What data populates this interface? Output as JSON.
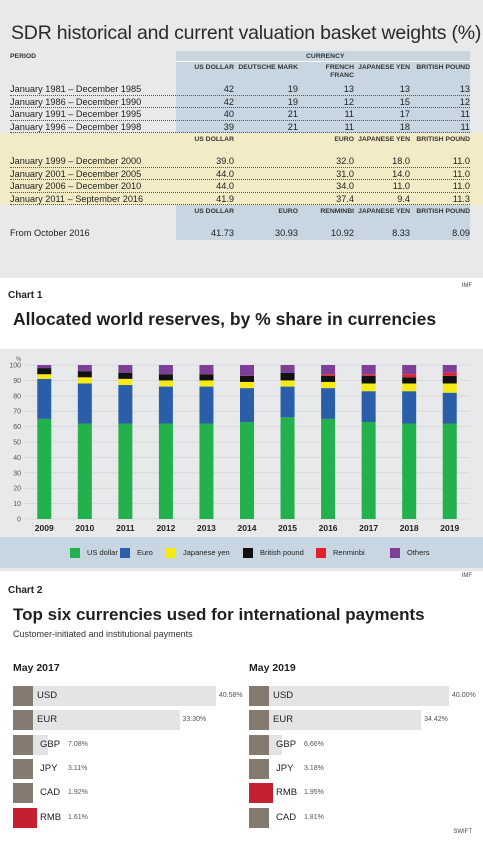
{
  "sdr": {
    "title": "SDR historical and current valuation basket weights (%)",
    "period_header": "PERIOD",
    "currency_header": "CURRENCY",
    "source": "IMF",
    "sections": [
      {
        "theme": "blue",
        "headers": [
          "US DOLLAR",
          "DEUTSCHE MARK",
          "FRENCH FRANC",
          "JAPANESE YEN",
          "BRITISH POUND"
        ],
        "rows": [
          {
            "period": "January 1981 – December 1985",
            "values": [
              "42",
              "19",
              "13",
              "13",
              "13"
            ]
          },
          {
            "period": "January 1986 – December 1990",
            "values": [
              "42",
              "19",
              "12",
              "15",
              "12"
            ]
          },
          {
            "period": "January 1991 – December 1995",
            "values": [
              "40",
              "21",
              "11",
              "17",
              "11"
            ]
          },
          {
            "period": "January 1996 – December 1998",
            "values": [
              "39",
              "21",
              "11",
              "18",
              "11"
            ]
          }
        ]
      },
      {
        "theme": "yellow",
        "headers": [
          "US DOLLAR",
          "",
          "EURO",
          "JAPANESE YEN",
          "BRITISH POUND"
        ],
        "rows": [
          {
            "period": "January 1999 – December 2000",
            "values": [
              "39.0",
              "",
              "32.0",
              "18.0",
              "11.0"
            ]
          },
          {
            "period": "January 2001 – December 2005",
            "values": [
              "44.0",
              "",
              "31.0",
              "14.0",
              "11.0"
            ]
          },
          {
            "period": "January 2006 – December 2010",
            "values": [
              "44.0",
              "",
              "34.0",
              "11.0",
              "11.0"
            ]
          },
          {
            "period": "January 2011 – September 2016",
            "values": [
              "41.9",
              "",
              "37.4",
              "9.4",
              "11.3"
            ]
          }
        ]
      },
      {
        "theme": "blue",
        "headers": [
          "US DOLLAR",
          "EURO",
          "RENMINBI",
          "JAPANESE YEN",
          "BRITISH POUND"
        ],
        "rows": [
          {
            "period": "From October 2016",
            "values": [
              "41.73",
              "30.93",
              "10.92",
              "8.33",
              "8.09"
            ]
          }
        ]
      }
    ]
  },
  "chart1": {
    "label": "Chart 1",
    "title": "Allocated world reserves, by % share in currencies",
    "source": "IMF",
    "chart_data": {
      "type": "bar",
      "stacked": true,
      "categories": [
        "2009",
        "2010",
        "2011",
        "2012",
        "2013",
        "2014",
        "2015",
        "2016",
        "2017",
        "2018",
        "2019"
      ],
      "ylim": [
        0,
        100
      ],
      "yticks": [
        "0",
        "10",
        "20",
        "30",
        "40",
        "50",
        "60",
        "70",
        "80",
        "90",
        "100"
      ],
      "yunit": "%",
      "grid": true,
      "legend": "bottom",
      "series": [
        {
          "name": "US dollar",
          "color": "#22b14c",
          "values": [
            65,
            62,
            62,
            62,
            62,
            63,
            66,
            65,
            63,
            62,
            62
          ]
        },
        {
          "name": "Euro",
          "color": "#2a5ea8",
          "values": [
            26,
            26,
            25,
            24,
            24,
            22,
            20,
            20,
            20,
            21,
            20
          ]
        },
        {
          "name": "Japanese yen",
          "color": "#f5ea14",
          "values": [
            3,
            4,
            4,
            4,
            4,
            4,
            4,
            4,
            5,
            5,
            6
          ]
        },
        {
          "name": "British pound",
          "color": "#111111",
          "values": [
            4,
            4,
            4,
            4,
            4,
            4,
            5,
            4,
            5,
            4,
            5
          ]
        },
        {
          "name": "Renminbi",
          "color": "#e4202b",
          "values": [
            0,
            0,
            0,
            0,
            0,
            0,
            0,
            1,
            1,
            2,
            2
          ]
        },
        {
          "name": "Others",
          "color": "#7d3f98",
          "values": [
            2,
            4,
            5,
            6,
            6,
            7,
            5,
            6,
            6,
            6,
            5
          ]
        }
      ]
    }
  },
  "chart2": {
    "label": "Chart 2",
    "title": "Top six currencies used for international payments",
    "subtitle": "Customer-initiated and institutional payments",
    "source": "SWIFT",
    "chart_data": [
      {
        "type": "bar",
        "orientation": "horizontal",
        "title": "May 2017",
        "categories": [
          "USD",
          "EUR",
          "GBP",
          "JPY",
          "CAD",
          "RMB"
        ],
        "values": [
          40.58,
          33.3,
          7.08,
          3.11,
          1.92,
          1.61
        ],
        "labels": [
          "40.58%",
          "33.30%",
          "7.08%",
          "3.11%",
          "1.92%",
          "1.61%"
        ],
        "highlight": "RMB"
      },
      {
        "type": "bar",
        "orientation": "horizontal",
        "title": "May 2019",
        "categories": [
          "USD",
          "EUR",
          "GBP",
          "JPY",
          "RMB",
          "CAD"
        ],
        "values": [
          40.0,
          34.42,
          6.66,
          3.18,
          1.95,
          1.81
        ],
        "labels": [
          "40.00%",
          "34.42%",
          "6.66%",
          "3.18%",
          "1.95%",
          "1.81%"
        ],
        "highlight": "RMB"
      }
    ],
    "colors": {
      "base": "#857a70",
      "highlight": "#c4202f",
      "track": "#e4e4e4"
    }
  }
}
